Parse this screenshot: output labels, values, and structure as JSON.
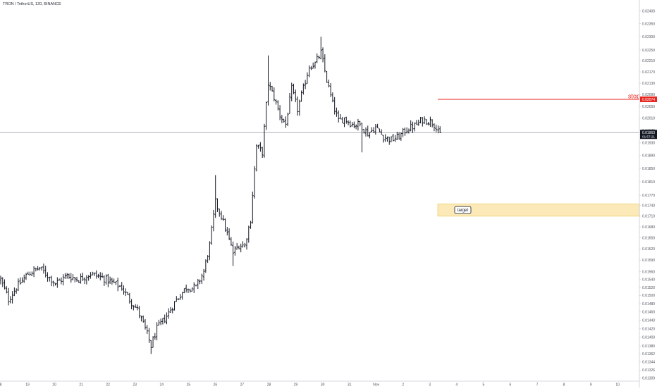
{
  "symbol_title": "TRON / TetherUS, 120, BINANCE",
  "colors": {
    "candle": "#131722",
    "price_line": "#9598a1",
    "price_badge_bg": "#131722",
    "price_badge_text": "#ffffff",
    "stop_line": "#e8261f",
    "stop_badge_bg": "#e8261f",
    "target_fill": "#fbe9b8",
    "target_border": "#f0cf73",
    "axis_text": "#50535e",
    "axis_line": "#c9cbd1"
  },
  "price_axis": {
    "ticks": [
      "0.02400",
      "0.02350",
      "0.02300",
      "0.02250",
      "0.02210",
      "0.02170",
      "0.02130",
      "0.02090",
      "0.02050",
      "0.02010",
      "0.01970",
      "0.01930",
      "0.01890",
      "0.01850",
      "0.01810",
      "0.01770",
      "0.01740",
      "0.01710",
      "0.01680",
      "0.01650",
      "0.01620",
      "0.01590",
      "0.01560",
      "0.01540",
      "0.01520",
      "0.01500",
      "0.01480",
      "0.01460",
      "0.01440",
      "0.01420",
      "0.01400",
      "0.01380",
      "0.01362",
      "0.01344",
      "0.01326",
      "0.01309"
    ]
  },
  "time_axis": {
    "labels": [
      "8",
      "19",
      "20",
      "21",
      "22",
      "23",
      "24",
      "25",
      "26",
      "27",
      "28",
      "29",
      "30",
      "31",
      "Nov",
      "2",
      "3",
      "4",
      "5",
      "6",
      "7",
      "8",
      "9",
      "10"
    ]
  },
  "current_price": {
    "value": "0.01963",
    "countdown": "01:57:21"
  },
  "stop": {
    "label": "stop",
    "value": "0.02074"
  },
  "target": {
    "label": "target",
    "from": 0.0171,
    "to": 0.01745
  },
  "chart_data": {
    "type": "ohlc",
    "title": "TRON / TetherUS, 120, BINANCE",
    "interval": "120",
    "y_scale": "log",
    "ylim": [
      0.0131,
      0.0241
    ],
    "grid": false,
    "current_price": 0.01963,
    "stop_level": 0.02074,
    "target_zone": [
      0.0171,
      0.01745
    ],
    "x_labels": [
      "8",
      "19",
      "20",
      "21",
      "22",
      "23",
      "24",
      "25",
      "26",
      "27",
      "28",
      "29",
      "30",
      "31",
      "Nov",
      "2",
      "3",
      "4",
      "5",
      "6",
      "7",
      "8",
      "9",
      "10"
    ],
    "anchors": [
      {
        "i": 0,
        "p": 0.0154
      },
      {
        "i": 4,
        "p": 0.0149
      },
      {
        "i": 8,
        "p": 0.0152
      },
      {
        "i": 14,
        "p": 0.01555
      },
      {
        "i": 20,
        "p": 0.0157
      },
      {
        "i": 24,
        "p": 0.0155
      },
      {
        "i": 28,
        "p": 0.0153
      },
      {
        "i": 34,
        "p": 0.0155
      },
      {
        "i": 40,
        "p": 0.0154
      },
      {
        "i": 46,
        "p": 0.01555
      },
      {
        "i": 52,
        "p": 0.01545
      },
      {
        "i": 58,
        "p": 0.0153
      },
      {
        "i": 62,
        "p": 0.0152
      },
      {
        "i": 66,
        "p": 0.0149
      },
      {
        "i": 70,
        "p": 0.01465
      },
      {
        "i": 74,
        "p": 0.0142
      },
      {
        "i": 77,
        "p": 0.0138
      },
      {
        "i": 80,
        "p": 0.0142
      },
      {
        "i": 85,
        "p": 0.0145
      },
      {
        "i": 90,
        "p": 0.0149
      },
      {
        "i": 95,
        "p": 0.0152
      },
      {
        "i": 100,
        "p": 0.0152
      },
      {
        "i": 104,
        "p": 0.0156
      },
      {
        "i": 107,
        "p": 0.0163
      },
      {
        "i": 110,
        "p": 0.0175
      },
      {
        "i": 113,
        "p": 0.0171
      },
      {
        "i": 116,
        "p": 0.0166
      },
      {
        "i": 119,
        "p": 0.0161
      },
      {
        "i": 122,
        "p": 0.0163
      },
      {
        "i": 125,
        "p": 0.0163
      },
      {
        "i": 128,
        "p": 0.017
      },
      {
        "i": 131,
        "p": 0.0192
      },
      {
        "i": 134,
        "p": 0.019
      },
      {
        "i": 137,
        "p": 0.0213
      },
      {
        "i": 140,
        "p": 0.0208
      },
      {
        "i": 143,
        "p": 0.0202
      },
      {
        "i": 146,
        "p": 0.0199
      },
      {
        "i": 149,
        "p": 0.0211
      },
      {
        "i": 152,
        "p": 0.0204
      },
      {
        "i": 155,
        "p": 0.0211
      },
      {
        "i": 158,
        "p": 0.0219
      },
      {
        "i": 161,
        "p": 0.022
      },
      {
        "i": 164,
        "p": 0.0224
      },
      {
        "i": 167,
        "p": 0.0214
      },
      {
        "i": 170,
        "p": 0.0206
      },
      {
        "i": 173,
        "p": 0.02
      },
      {
        "i": 176,
        "p": 0.0201
      },
      {
        "i": 180,
        "p": 0.0199
      },
      {
        "i": 184,
        "p": 0.0199
      },
      {
        "i": 188,
        "p": 0.0196
      },
      {
        "i": 192,
        "p": 0.0198
      },
      {
        "i": 196,
        "p": 0.0195
      },
      {
        "i": 200,
        "p": 0.0194
      },
      {
        "i": 204,
        "p": 0.0195
      },
      {
        "i": 208,
        "p": 0.01975
      },
      {
        "i": 212,
        "p": 0.01985
      },
      {
        "i": 216,
        "p": 0.02005
      },
      {
        "i": 220,
        "p": 0.02
      },
      {
        "i": 223,
        "p": 0.01985
      },
      {
        "i": 225,
        "p": 0.01963
      }
    ],
    "spikes": [
      {
        "i": 77,
        "low": 0.01362
      },
      {
        "i": 110,
        "high": 0.0183
      },
      {
        "i": 119,
        "low": 0.01575
      },
      {
        "i": 137,
        "high": 0.0223
      },
      {
        "i": 164,
        "high": 0.023
      },
      {
        "i": 185,
        "low": 0.019
      }
    ]
  }
}
